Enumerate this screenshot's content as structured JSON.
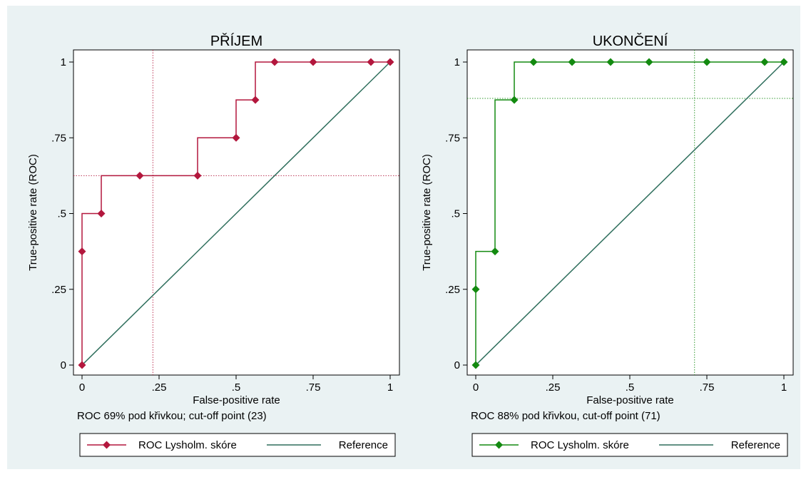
{
  "chart_data": [
    {
      "type": "line",
      "title": "PŘÍJEM",
      "xlabel": "False-positive rate",
      "ylabel": "True-positive rate (ROC)",
      "note": "ROC 69% pod křivkou; cut-off point (23)",
      "xlim": [
        0,
        1
      ],
      "ylim": [
        0,
        1
      ],
      "x_ticks": [
        {
          "value": 0,
          "label": "0"
        },
        {
          "value": 0.25,
          "label": ".25"
        },
        {
          "value": 0.5,
          "label": ".5"
        },
        {
          "value": 0.75,
          "label": ".75"
        },
        {
          "value": 1,
          "label": "1"
        }
      ],
      "y_ticks": [
        {
          "value": 0,
          "label": "0"
        },
        {
          "value": 0.25,
          "label": ".25"
        },
        {
          "value": 0.5,
          "label": ".5"
        },
        {
          "value": 0.75,
          "label": ".75"
        },
        {
          "value": 1,
          "label": "1"
        }
      ],
      "cutoff": {
        "x": 0.23,
        "y": 0.625
      },
      "grid": false,
      "legend_position": "bottom",
      "series": [
        {
          "name": "ROC Lysholm. skóre",
          "color": "#b3173d",
          "marker": "diamond",
          "step": true,
          "points": [
            [
              0,
              0
            ],
            [
              0,
              0.375
            ],
            [
              0.0625,
              0.5
            ],
            [
              0.1875,
              0.625
            ],
            [
              0.375,
              0.625
            ],
            [
              0.5,
              0.75
            ],
            [
              0.5625,
              0.875
            ],
            [
              0.625,
              1
            ],
            [
              0.75,
              1
            ],
            [
              0.9375,
              1
            ],
            [
              1,
              1
            ]
          ]
        },
        {
          "name": "Reference",
          "color": "#2e6e5c",
          "marker": "none",
          "step": false,
          "points": [
            [
              0,
              0
            ],
            [
              1,
              1
            ]
          ]
        }
      ]
    },
    {
      "type": "line",
      "title": "UKONČENÍ",
      "xlabel": "False-positive rate",
      "ylabel": "True-positive rate (ROC)",
      "note": "ROC 88% pod křivkou, cut-off point (71)",
      "xlim": [
        0,
        1
      ],
      "ylim": [
        0,
        1
      ],
      "x_ticks": [
        {
          "value": 0,
          "label": "0"
        },
        {
          "value": 0.25,
          "label": ".25"
        },
        {
          "value": 0.5,
          "label": ".5"
        },
        {
          "value": 0.75,
          "label": ".75"
        },
        {
          "value": 1,
          "label": "1"
        }
      ],
      "y_ticks": [
        {
          "value": 0,
          "label": "0"
        },
        {
          "value": 0.25,
          "label": ".25"
        },
        {
          "value": 0.5,
          "label": ".5"
        },
        {
          "value": 0.75,
          "label": ".75"
        },
        {
          "value": 1,
          "label": "1"
        }
      ],
      "cutoff": {
        "x": 0.71,
        "y": 0.88
      },
      "grid": false,
      "legend_position": "bottom",
      "series": [
        {
          "name": "ROC Lysholm. skóre",
          "color": "#138a10",
          "marker": "diamond",
          "step": true,
          "points": [
            [
              0,
              0
            ],
            [
              0,
              0.25
            ],
            [
              0.0625,
              0.375
            ],
            [
              0.125,
              0.875
            ],
            [
              0.1875,
              1
            ],
            [
              0.3125,
              1
            ],
            [
              0.4375,
              1
            ],
            [
              0.5625,
              1
            ],
            [
              0.75,
              1
            ],
            [
              0.9375,
              1
            ],
            [
              1,
              1
            ]
          ]
        },
        {
          "name": "Reference",
          "color": "#2e6e5c",
          "marker": "none",
          "step": false,
          "points": [
            [
              0,
              0
            ],
            [
              1,
              1
            ]
          ]
        }
      ]
    }
  ],
  "colors": {
    "outer_background": "#eaf2f3",
    "plot_background": "#ffffff",
    "axis": "#000000"
  }
}
